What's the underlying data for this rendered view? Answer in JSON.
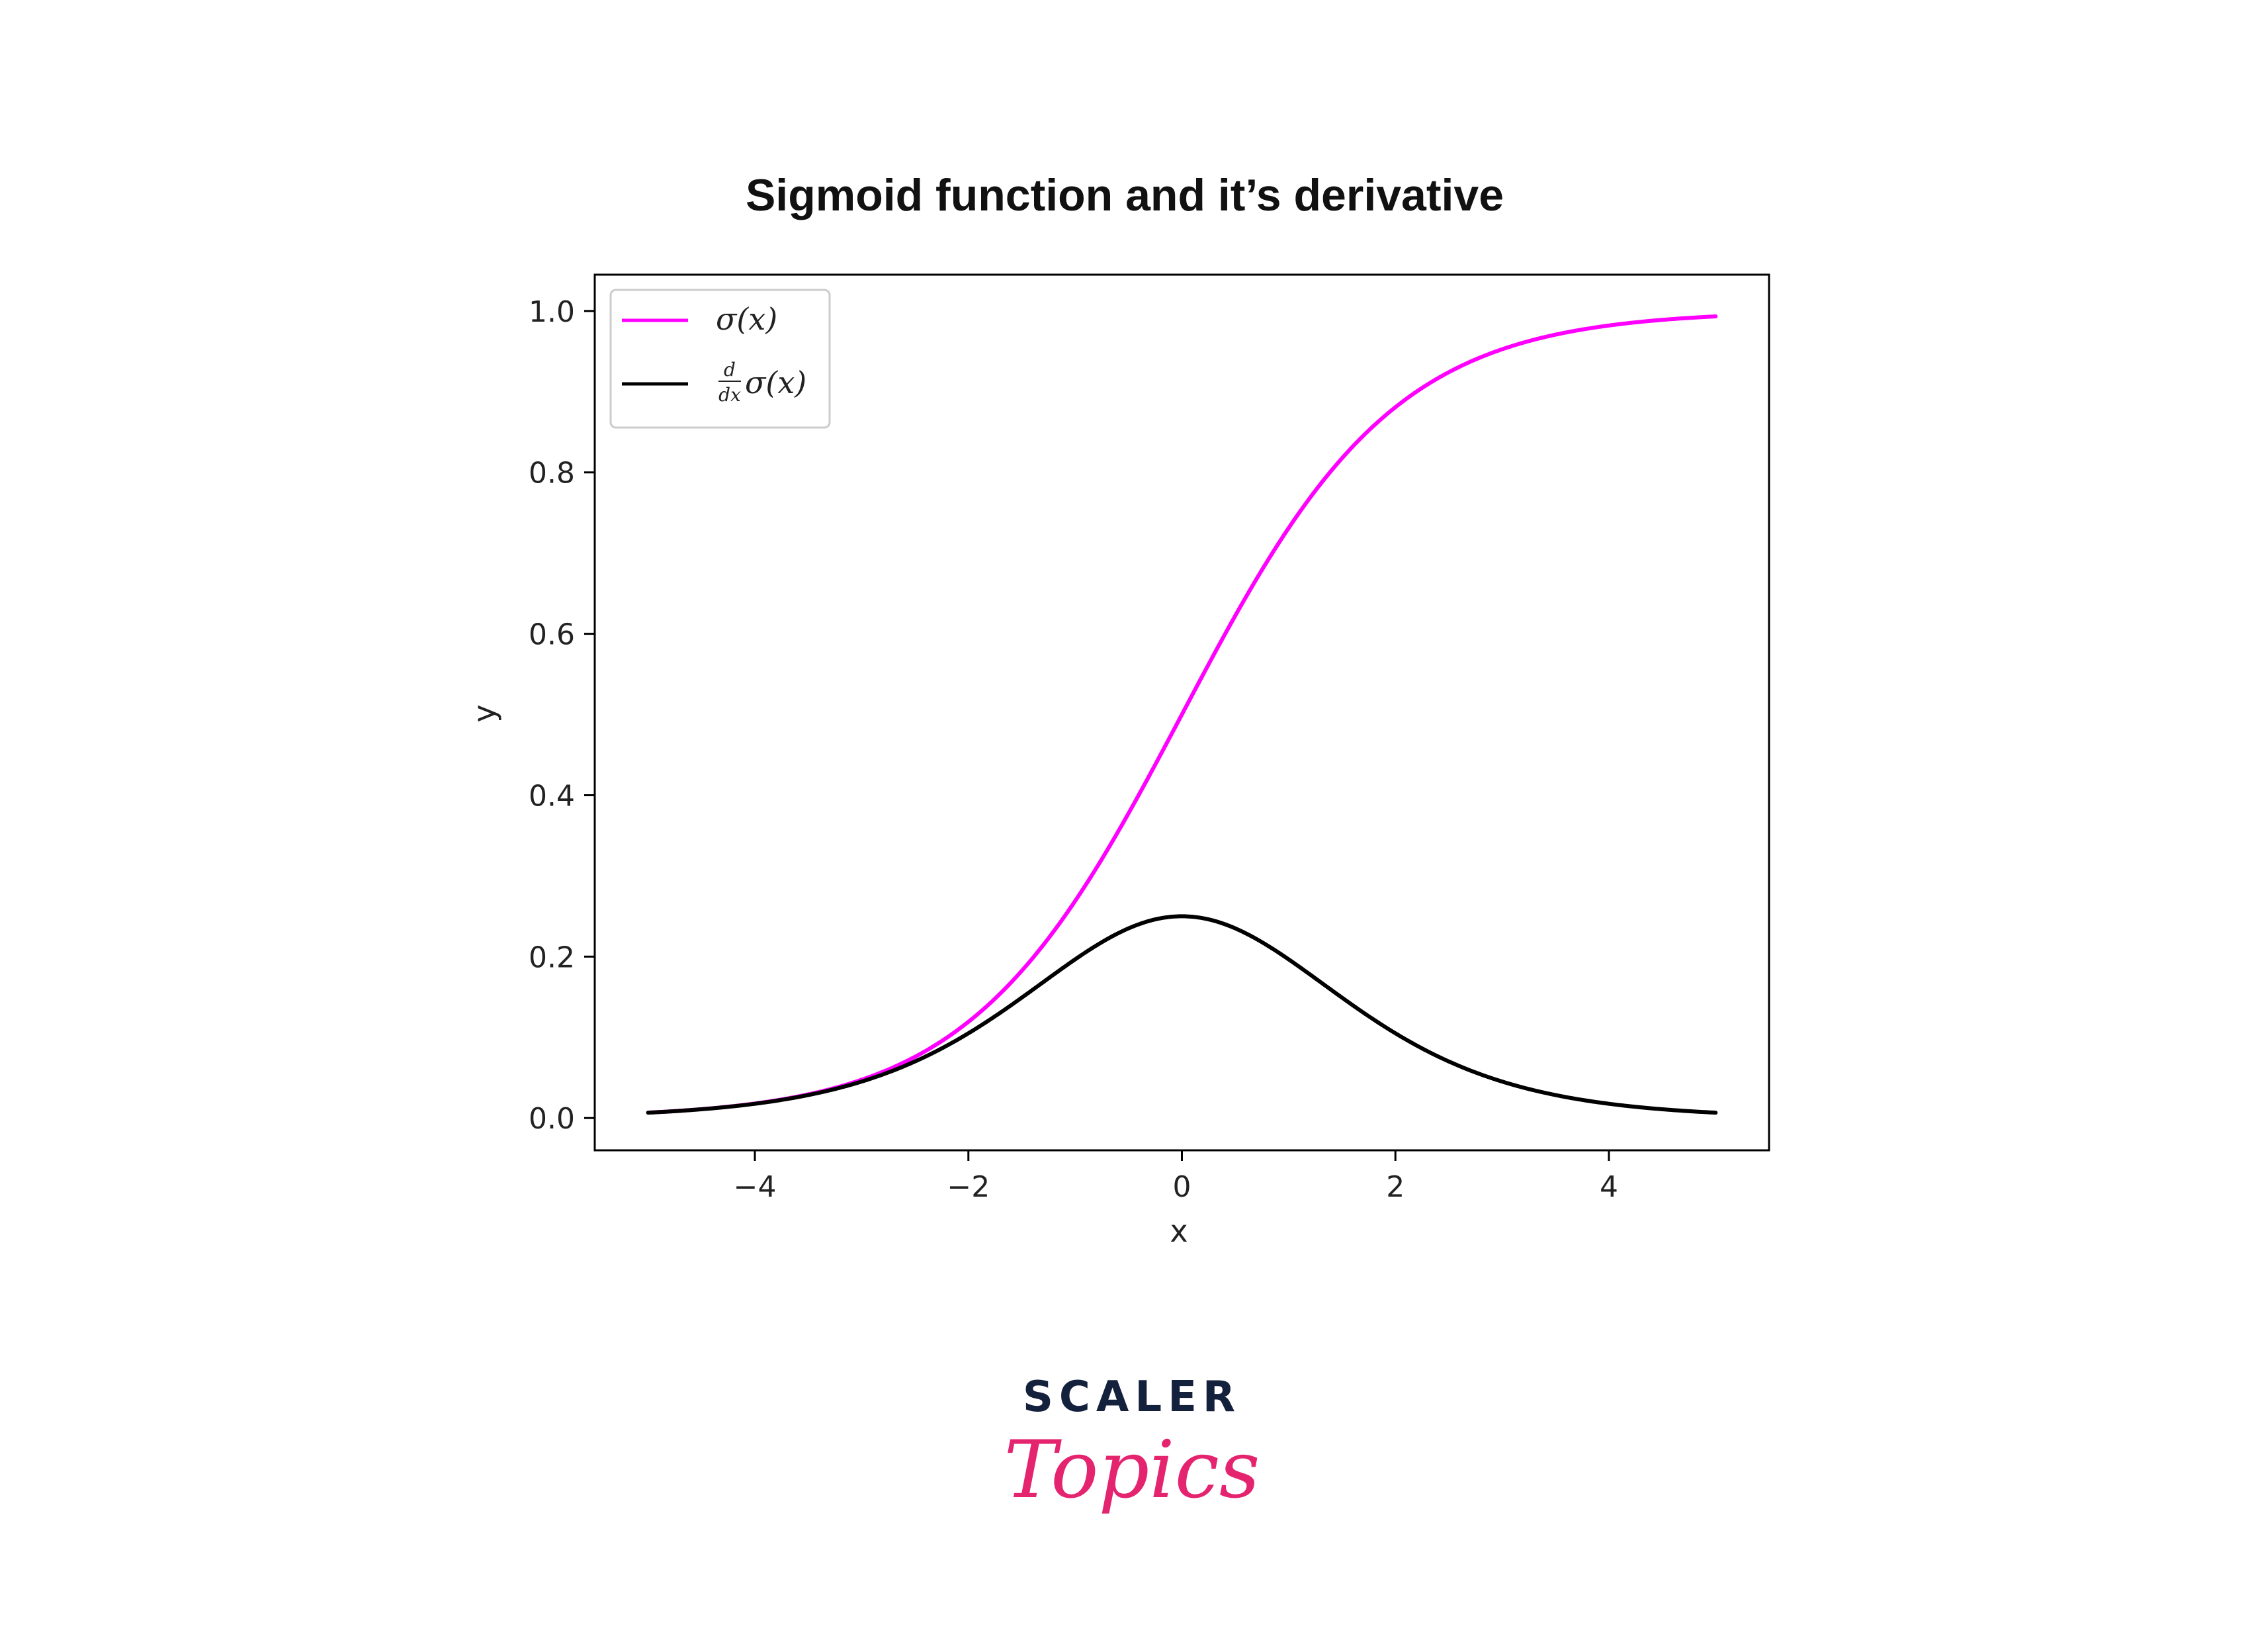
{
  "chart_data": {
    "type": "line",
    "title": "Sigmoid function and it’s derivative",
    "xlabel": "x",
    "ylabel": "y",
    "xlim": [
      -5.5,
      5.5
    ],
    "ylim": [
      -0.04,
      1.045
    ],
    "xticks": [
      -4,
      -2,
      0,
      2,
      4
    ],
    "xtick_labels": [
      "−4",
      "−2",
      "0",
      "2",
      "4"
    ],
    "yticks": [
      0.0,
      0.2,
      0.4,
      0.6,
      0.8,
      1.0
    ],
    "ytick_labels": [
      "0.0",
      "0.2",
      "0.4",
      "0.6",
      "0.8",
      "1.0"
    ],
    "grid": false,
    "legend_position": "top-left",
    "series": [
      {
        "name": "σ(x)",
        "legend_main": "σ(x)",
        "color": "#ff00ff",
        "function": "sigmoid",
        "x": [
          -5,
          -4,
          -3,
          -2,
          -1,
          0,
          1,
          2,
          3,
          4,
          5
        ],
        "y": [
          0.007,
          0.018,
          0.047,
          0.119,
          0.269,
          0.5,
          0.731,
          0.881,
          0.953,
          0.982,
          0.993
        ]
      },
      {
        "name": "d/dx σ(x)",
        "legend_num": "d",
        "legend_den": "dx",
        "legend_main": "σ(x)",
        "color": "#000000",
        "function": "sigmoid_derivative",
        "x": [
          -5,
          -4,
          -3,
          -2,
          -1,
          0,
          1,
          2,
          3,
          4,
          5
        ],
        "y": [
          0.007,
          0.018,
          0.045,
          0.105,
          0.197,
          0.25,
          0.197,
          0.105,
          0.045,
          0.018,
          0.007
        ]
      }
    ]
  },
  "brand": {
    "line1": "SCALER",
    "line2": "Topics",
    "color_dark": "#14213d",
    "color_accent": "#e5246f"
  }
}
